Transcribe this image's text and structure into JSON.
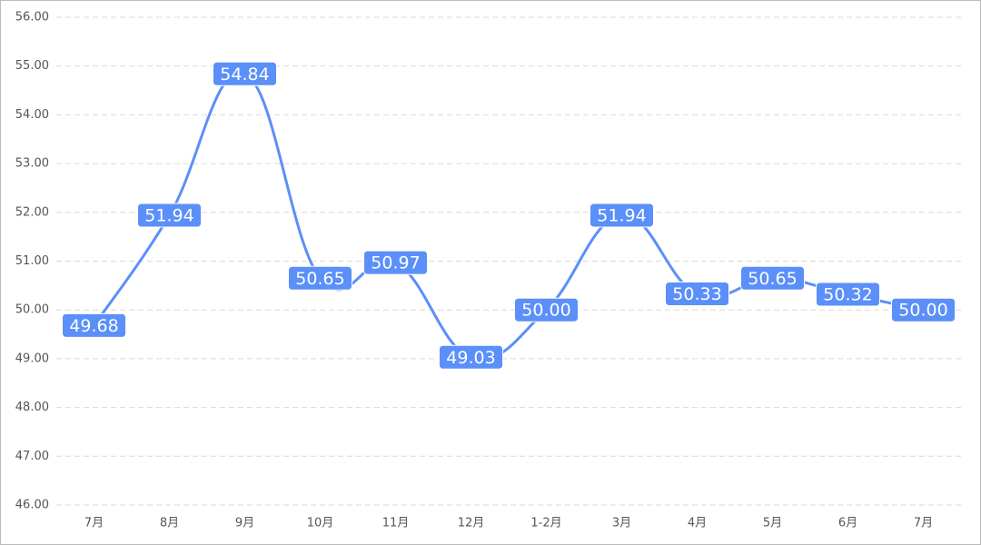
{
  "chart_data": {
    "type": "line",
    "categories": [
      "7月",
      "8月",
      "9月",
      "10月",
      "11月",
      "12月",
      "1-2月",
      "3月",
      "4月",
      "5月",
      "6月",
      "7月"
    ],
    "series": [
      {
        "color": "#5b8ff9",
        "values": [
          49.68,
          51.94,
          54.84,
          50.65,
          50.97,
          49.03,
          50,
          51.94,
          50.33,
          50.65,
          50.32,
          50
        ],
        "value_labels": [
          "49.68",
          "51.94",
          "54.84",
          "50.65",
          "50.97",
          "49.03",
          "50.00",
          "51.94",
          "50.33",
          "50.65",
          "50.32",
          "50.00"
        ]
      }
    ],
    "ylim": [
      46,
      56
    ],
    "yticks": [
      {
        "value": 46,
        "label": "46.00"
      },
      {
        "value": 47,
        "label": "47.00"
      },
      {
        "value": 48,
        "label": "48.00"
      },
      {
        "value": 49,
        "label": "49.00"
      },
      {
        "value": 50,
        "label": "50.00"
      },
      {
        "value": 51,
        "label": "51.00"
      },
      {
        "value": 52,
        "label": "52.00"
      },
      {
        "value": 53,
        "label": "53.00"
      },
      {
        "value": 54,
        "label": "54.00"
      },
      {
        "value": 55,
        "label": "55.00"
      },
      {
        "value": 56,
        "label": "56.00"
      }
    ],
    "grid": true,
    "smooth": true
  }
}
